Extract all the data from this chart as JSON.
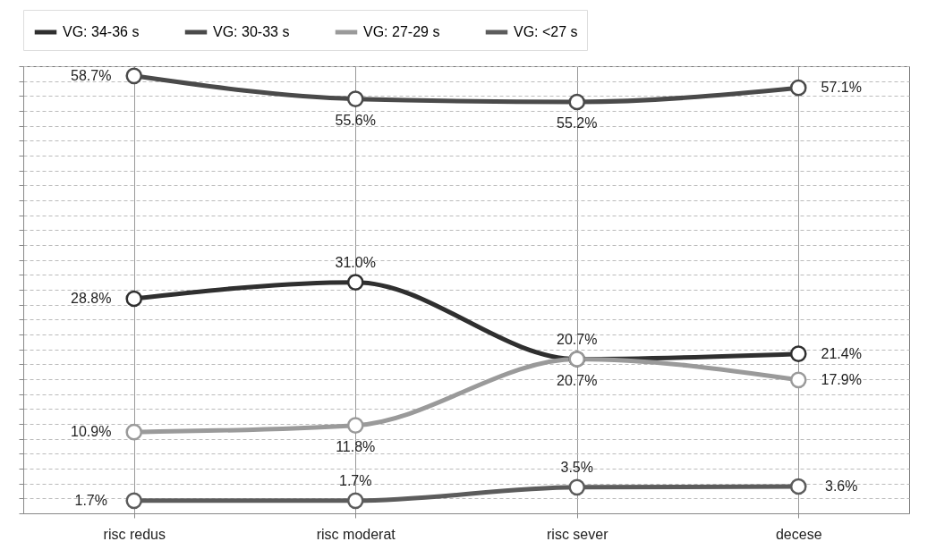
{
  "chart_data": {
    "type": "line",
    "categories": [
      "risc redus",
      "risc moderat",
      "risc sever",
      "decese"
    ],
    "series": [
      {
        "name": "VG: 34-36 s",
        "color": "#2f2f2f",
        "values": [
          28.8,
          31.0,
          20.7,
          21.4
        ],
        "value_labels": [
          "28.8%",
          "31.0%",
          "20.7%",
          "21.4%"
        ]
      },
      {
        "name": "VG: 30-33 s",
        "color": "#4a4a4a",
        "values": [
          58.7,
          55.6,
          55.2,
          57.1
        ],
        "value_labels": [
          "58.7%",
          "55.6%",
          "55.2%",
          "57.1%"
        ]
      },
      {
        "name": "VG: 27-29 s",
        "color": "#9a9a9a",
        "values": [
          10.9,
          11.8,
          20.7,
          17.9
        ],
        "value_labels": [
          "10.9%",
          "11.8%",
          "20.7%",
          "17.9%"
        ]
      },
      {
        "name": "VG: <27 s",
        "color": "#5c5c5c",
        "values": [
          1.7,
          1.7,
          3.5,
          3.6
        ],
        "value_labels": [
          "1.7%",
          "1.7%",
          "3.5%",
          "3.6%"
        ]
      }
    ],
    "grid": true,
    "legend": "top",
    "marker": "circle",
    "line_style": "solid",
    "tick_labels": "x"
  }
}
